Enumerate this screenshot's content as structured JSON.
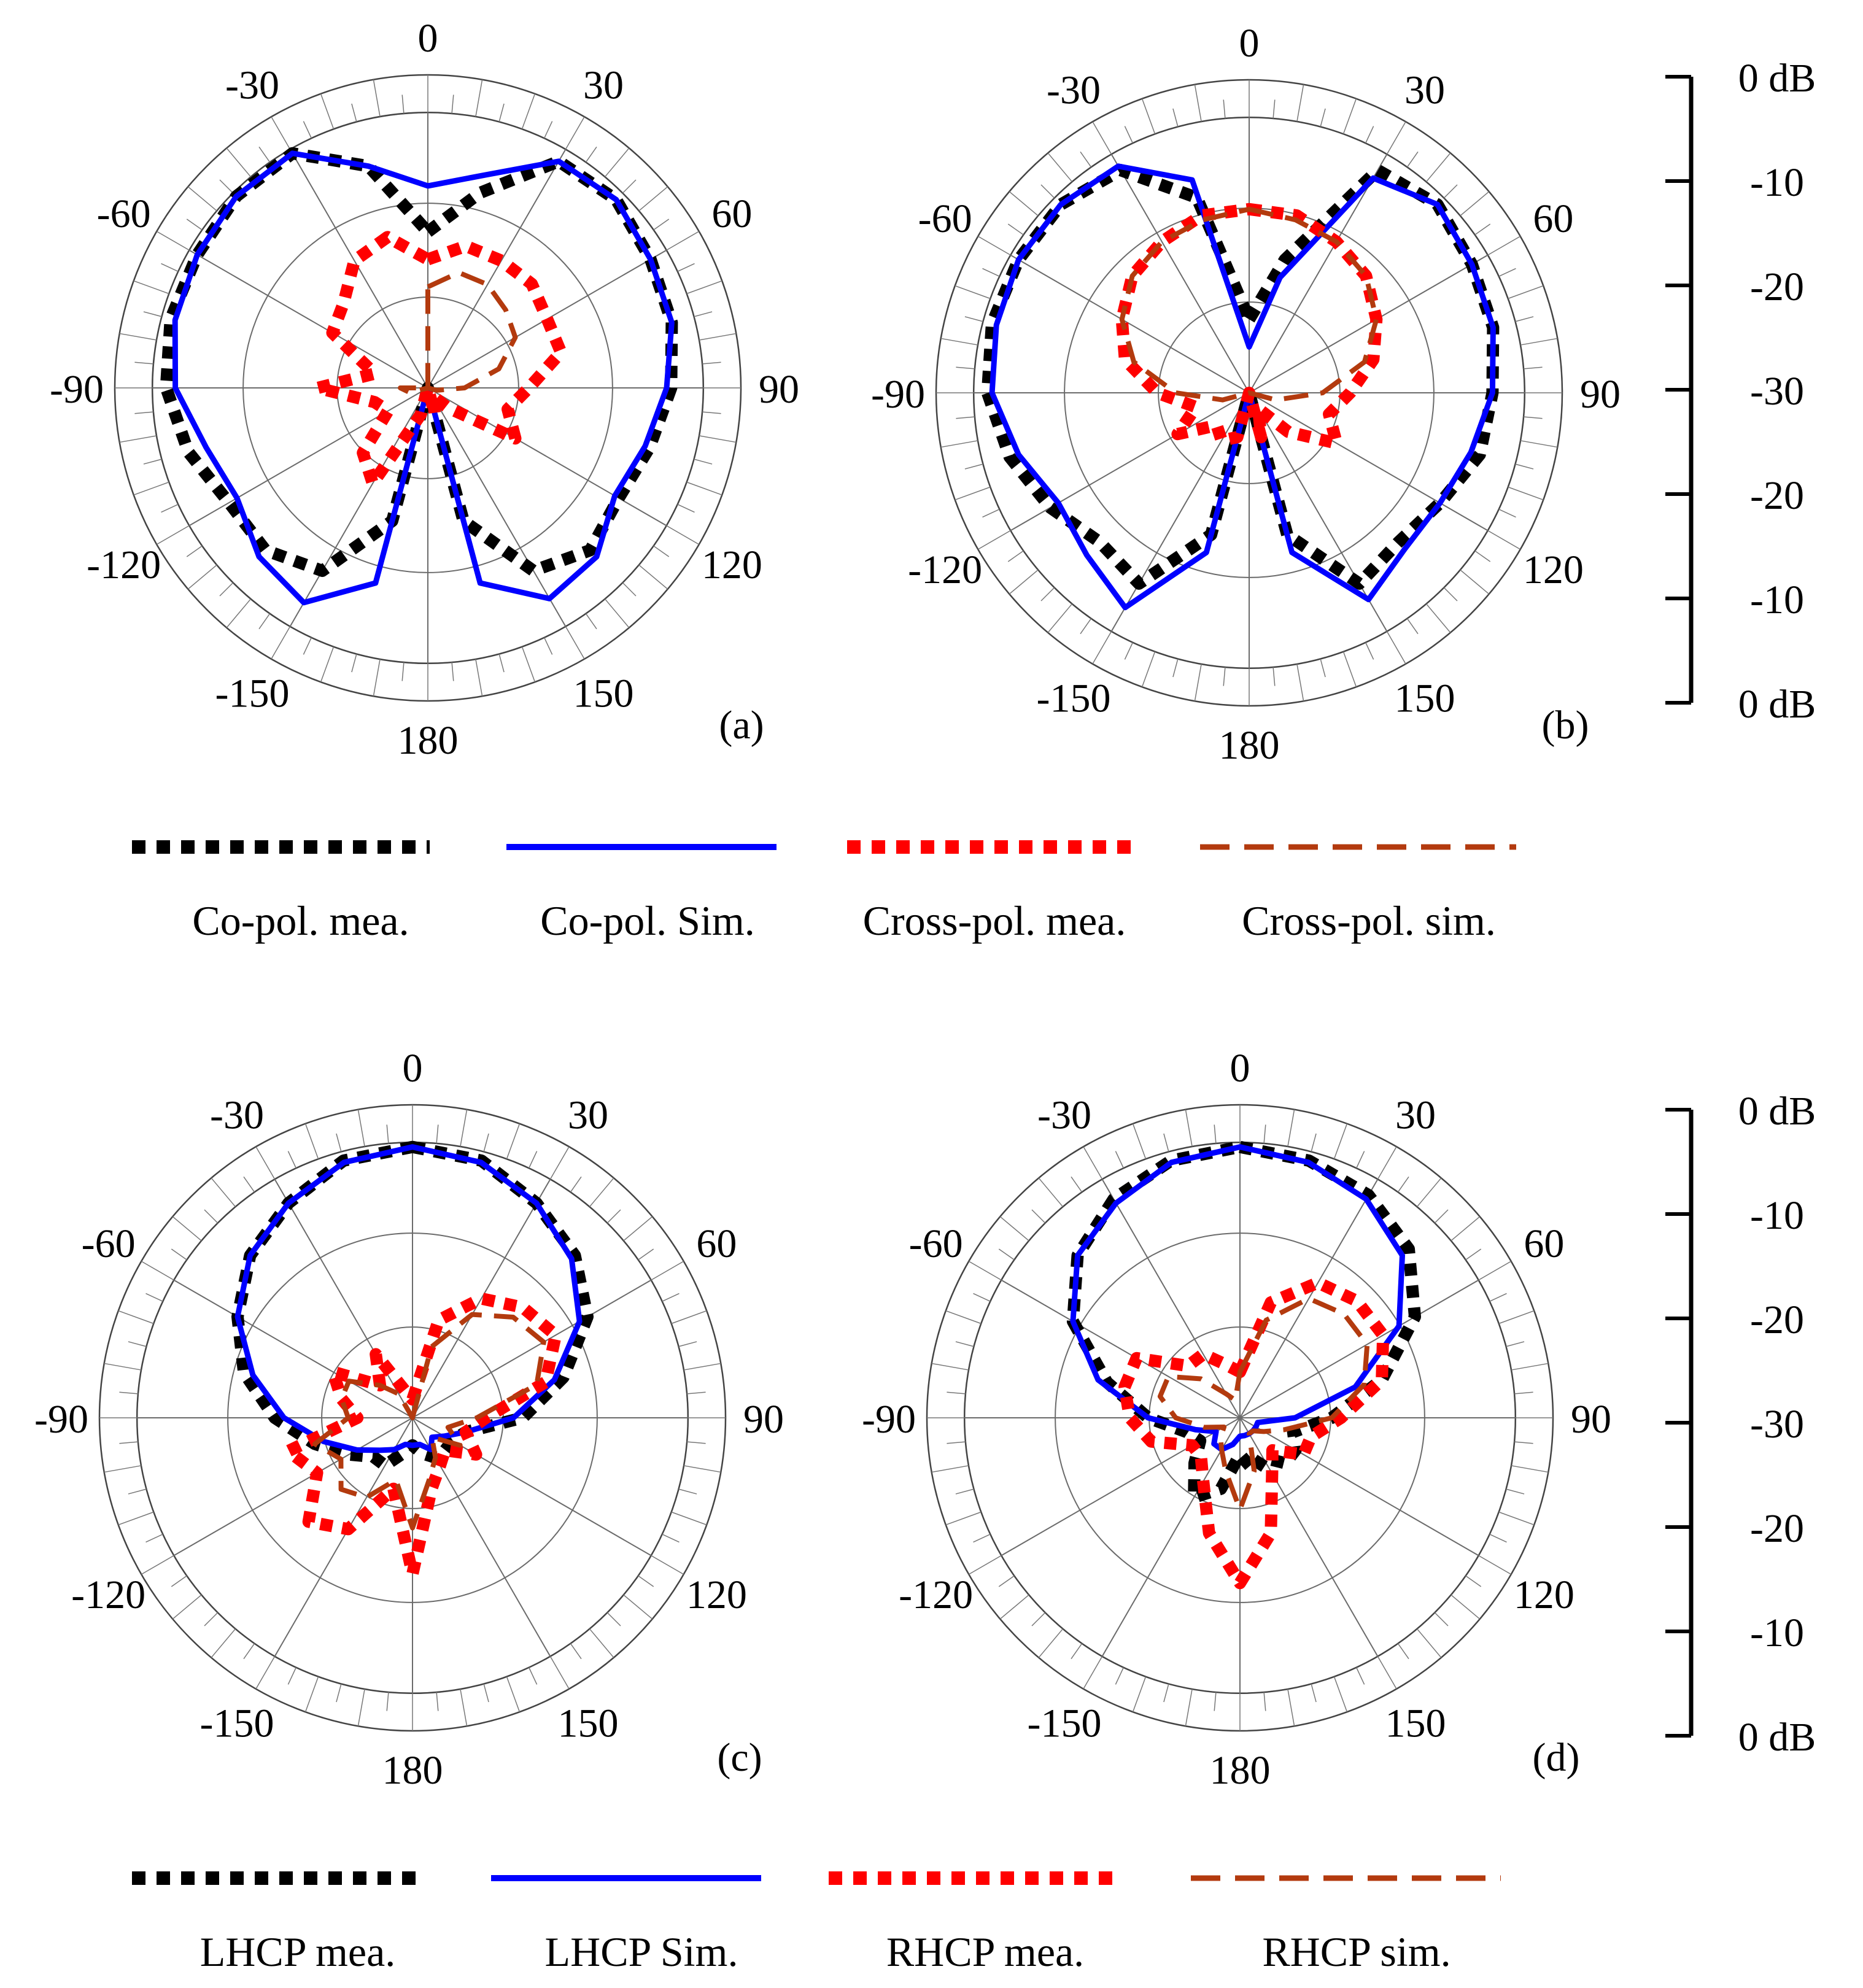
{
  "figure": {
    "angle_ticks": [
      "0",
      "30",
      "60",
      "90",
      "120",
      "150",
      "180",
      "-150",
      "-120",
      "-90",
      "-60",
      "-30"
    ],
    "legend_top": [
      "Co-pol. mea.",
      "Co-pol. Sim.",
      "Cross-pol. mea.",
      "Cross-pol. sim."
    ],
    "legend_bottom": [
      "LHCP mea.",
      "LHCP Sim.",
      "RHCP mea.",
      "RHCP sim."
    ],
    "scale_labels": [
      "0 dB",
      "-10",
      "-20",
      "-30",
      "-20",
      "-10",
      "0 dB"
    ],
    "series_colors": {
      "measured_main": "#000000",
      "simulated_main": "#0000ff",
      "measured_cross": "#ff0000",
      "simulated_cross": "#b33a0e"
    }
  },
  "chart_data": [
    {
      "type": "polar",
      "panel": "(a)",
      "radial_range_db": [
        -30,
        0
      ],
      "angle_unit": "deg",
      "series": [
        {
          "name": "Co-pol. mea.",
          "style": "dotted",
          "color": "#000000",
          "theta": [
            0,
            15,
            30,
            45,
            60,
            75,
            90,
            105,
            120,
            135,
            150,
            165,
            180,
            -165,
            -150,
            -135,
            -120,
            -105,
            -90,
            -75,
            -60,
            -45,
            -30,
            -15
          ],
          "r_db": [
            -13,
            -8,
            -1.5,
            -1,
            -2,
            -2.5,
            -3.5,
            -5,
            -6,
            -5,
            -7,
            -15,
            -30,
            -15,
            -7,
            -5,
            -5,
            -3,
            -1.5,
            -1,
            -1,
            -0.5,
            -0.5,
            -5
          ]
        },
        {
          "name": "Co-pol. Sim.",
          "style": "solid",
          "color": "#0000ff",
          "theta": [
            0,
            15,
            30,
            45,
            60,
            75,
            90,
            105,
            120,
            135,
            150,
            165,
            180,
            -165,
            -150,
            -135,
            -120,
            -105,
            -90,
            -75,
            -60,
            -45,
            -30,
            -15
          ],
          "r_db": [
            -8,
            -6,
            -1.5,
            -1,
            -2,
            -2.5,
            -4,
            -5.5,
            -6.5,
            -4,
            -3.5,
            -8,
            -30,
            -8,
            -3,
            -4,
            -6,
            -5,
            -2.5,
            -1.5,
            -1,
            -0.5,
            -0.5,
            -5
          ]
        },
        {
          "name": "Cross-pol. mea.",
          "style": "dotted",
          "color": "#ff0000",
          "theta": [
            0,
            15,
            30,
            45,
            60,
            75,
            90,
            105,
            120,
            135,
            150,
            165,
            180,
            -165,
            -150,
            -135,
            -120,
            -105,
            -90,
            -75,
            -60,
            -45,
            -30,
            -15
          ],
          "r_db": [
            -16,
            -14,
            -14,
            -14,
            -15,
            -15,
            -19,
            -21,
            -19,
            -27,
            -29,
            -27,
            -30,
            -27,
            -18,
            -20,
            -25,
            -24,
            -18,
            -24,
            -18,
            -17,
            -14,
            -13
          ]
        },
        {
          "name": "Cross-pol. sim.",
          "style": "dashed",
          "color": "#b33a0e",
          "theta": [
            0,
            15,
            30,
            45,
            60,
            75,
            90,
            105,
            120,
            135,
            150,
            165,
            180,
            -165,
            -150,
            -135,
            -120,
            -105,
            -90,
            -75,
            -60,
            -45,
            -30,
            -15
          ],
          "r_db": [
            -19,
            -17,
            -17,
            -18,
            -19,
            -22,
            -26,
            -29,
            -30,
            -30,
            -30,
            -30,
            -30,
            -30,
            -30,
            -30,
            -30,
            -28,
            -27,
            -30,
            -30,
            -30,
            -30,
            -30
          ]
        }
      ]
    },
    {
      "type": "polar",
      "panel": "(b)",
      "radial_range_db": [
        -30,
        0
      ],
      "angle_unit": "deg",
      "series": [
        {
          "name": "Co-pol. mea.",
          "style": "dotted",
          "color": "#000000",
          "theta": [
            0,
            15,
            30,
            45,
            60,
            75,
            90,
            105,
            120,
            135,
            150,
            165,
            180,
            -165,
            -150,
            -135,
            -120,
            -105,
            -90,
            -75,
            -60,
            -45,
            -30,
            -15
          ],
          "r_db": [
            -22,
            -15,
            -2,
            -1,
            -2,
            -2.5,
            -3.5,
            -4,
            -6,
            -7,
            -6,
            -14,
            -30,
            -14,
            -6,
            -7,
            -5,
            -3,
            -1.5,
            -1,
            -1,
            -1,
            -2,
            -8
          ]
        },
        {
          "name": "Co-pol. Sim.",
          "style": "solid",
          "color": "#0000ff",
          "theta": [
            0,
            15,
            30,
            45,
            60,
            75,
            90,
            105,
            120,
            135,
            150,
            165,
            180,
            -165,
            -150,
            -135,
            -120,
            -105,
            -90,
            -75,
            -60,
            -45,
            -30,
            -15
          ],
          "r_db": [
            -25,
            -17,
            -3,
            -1,
            -2,
            -2.5,
            -3.5,
            -5,
            -6,
            -6,
            -4,
            -12,
            -30,
            -12,
            -3,
            -5,
            -6,
            -4,
            -2,
            -1.5,
            -1,
            -1,
            -1.5,
            -6
          ]
        },
        {
          "name": "Cross-pol. mea.",
          "style": "dotted",
          "color": "#ff0000",
          "theta": [
            0,
            15,
            30,
            45,
            60,
            75,
            90,
            105,
            120,
            135,
            150,
            165,
            180,
            -165,
            -150,
            -135,
            -120,
            -105,
            -90,
            -75,
            -60,
            -45,
            -30,
            -15
          ],
          "r_db": [
            -10,
            -10,
            -11,
            -12,
            -14,
            -16,
            -19,
            -21,
            -19,
            -24,
            -28,
            -25,
            -30,
            -25,
            -24,
            -25,
            -21,
            -24,
            -20,
            -16,
            -14,
            -12,
            -11,
            -10
          ]
        },
        {
          "name": "Cross-pol. sim.",
          "style": "dashed",
          "color": "#b33a0e",
          "theta": [
            0,
            15,
            30,
            45,
            60,
            75,
            90,
            105,
            120,
            135,
            150,
            165,
            180,
            -165,
            -150,
            -135,
            -120,
            -105,
            -90,
            -75,
            -60,
            -45,
            -30,
            -15
          ],
          "r_db": [
            -10,
            -10.5,
            -11,
            -12,
            -14,
            -17,
            -22,
            -27,
            -30,
            -30,
            -30,
            -30,
            -30,
            -30,
            -30,
            -30,
            -30,
            -27,
            -22,
            -17,
            -14,
            -12,
            -11,
            -10.5
          ]
        }
      ]
    },
    {
      "type": "polar",
      "panel": "(c)",
      "radial_range_db": [
        -30,
        0
      ],
      "angle_unit": "deg",
      "series": [
        {
          "name": "LHCP mea.",
          "style": "dotted",
          "color": "#000000",
          "theta": [
            0,
            15,
            30,
            45,
            60,
            75,
            90,
            105,
            120,
            135,
            150,
            165,
            180,
            -165,
            -150,
            -135,
            -120,
            -105,
            -90,
            -75,
            -60,
            -45,
            -30,
            -15
          ],
          "r_db": [
            -0.5,
            -1,
            -3,
            -5,
            -8,
            -13,
            -18,
            -24,
            -25,
            -25,
            -25,
            -26,
            -27,
            -26,
            -24,
            -24,
            -22,
            -19,
            -15,
            -11,
            -8,
            -5,
            -3,
            -1
          ]
        },
        {
          "name": "LHCP Sim.",
          "style": "solid",
          "color": "#0000ff",
          "theta": [
            0,
            15,
            30,
            45,
            60,
            75,
            90,
            105,
            120,
            135,
            150,
            165,
            180,
            -165,
            -150,
            -135,
            -120,
            -105,
            -90,
            -75,
            -60,
            -45,
            -30,
            -15
          ],
          "r_db": [
            -0.5,
            -1.2,
            -3,
            -5.5,
            -9,
            -14,
            -19,
            -24,
            -26,
            -27,
            -26,
            -27,
            -27,
            -27,
            -26,
            -25,
            -23,
            -20,
            -16,
            -12,
            -8,
            -5,
            -3,
            -1.2
          ]
        },
        {
          "name": "RHCP mea.",
          "style": "dotted",
          "color": "#ff0000",
          "theta": [
            0,
            15,
            30,
            45,
            60,
            75,
            90,
            105,
            120,
            135,
            150,
            165,
            180,
            -165,
            -150,
            -135,
            -120,
            -105,
            -90,
            -75,
            -60,
            -45,
            -30,
            -15
          ],
          "r_db": [
            -28,
            -19,
            -15,
            -13,
            -12,
            -15,
            -22,
            -24,
            -22,
            -25,
            -24,
            -22,
            -13,
            -22,
            -16,
            -14,
            -18,
            -16,
            -24,
            -22,
            -20,
            -25,
            -22,
            -27
          ]
        },
        {
          "name": "RHCP sim.",
          "style": "dashed",
          "color": "#b33a0e",
          "theta": [
            0,
            15,
            30,
            45,
            60,
            75,
            90,
            105,
            120,
            135,
            150,
            165,
            180,
            -165,
            -150,
            -135,
            -120,
            -105,
            -90,
            -75,
            -60,
            -45,
            -30,
            -15
          ],
          "r_db": [
            -30,
            -22,
            -17,
            -14.5,
            -13.5,
            -16,
            -23,
            -26,
            -24,
            -27,
            -25,
            -23,
            -18,
            -23,
            -20,
            -19,
            -21,
            -19,
            -23,
            -22,
            -22,
            -25,
            -27,
            -30
          ]
        }
      ]
    },
    {
      "type": "polar",
      "panel": "(d)",
      "radial_range_db": [
        -30,
        0
      ],
      "angle_unit": "deg",
      "series": [
        {
          "name": "LHCP mea.",
          "style": "dotted",
          "color": "#000000",
          "theta": [
            0,
            15,
            30,
            45,
            60,
            75,
            90,
            105,
            120,
            135,
            150,
            165,
            180,
            -165,
            -150,
            -135,
            -120,
            -105,
            -90,
            -75,
            -60,
            -45,
            -30,
            -15
          ],
          "r_db": [
            -0.5,
            -1,
            -2,
            -4,
            -8,
            -14,
            -20,
            -24,
            -23,
            -23,
            -25,
            -24,
            -26,
            -22,
            -20,
            -23,
            -25,
            -24,
            -20,
            -15,
            -9,
            -5,
            -2.5,
            -1
          ]
        },
        {
          "name": "LHCP Sim.",
          "style": "solid",
          "color": "#0000ff",
          "theta": [
            0,
            15,
            30,
            45,
            60,
            75,
            90,
            105,
            120,
            135,
            150,
            165,
            180,
            -165,
            -150,
            -135,
            -120,
            -105,
            -90,
            -75,
            -60,
            -45,
            -30,
            -15
          ],
          "r_db": [
            -0.5,
            -1.2,
            -2.5,
            -5,
            -10,
            -17,
            -24,
            -28,
            -28,
            -28,
            -28,
            -28,
            -28,
            -27,
            -26,
            -26,
            -27,
            -25,
            -20,
            -14,
            -9,
            -5,
            -3,
            -1.2
          ]
        },
        {
          "name": "RHCP mea.",
          "style": "dotted",
          "color": "#ff0000",
          "theta": [
            0,
            15,
            30,
            45,
            60,
            75,
            90,
            105,
            120,
            135,
            150,
            165,
            180,
            -165,
            -150,
            -135,
            -120,
            -105,
            -90,
            -75,
            -60,
            -45,
            -30,
            -15
          ],
          "r_db": [
            -25,
            -17,
            -13,
            -12,
            -12,
            -14,
            -19,
            -22,
            -22,
            -25,
            -23,
            -17,
            -12,
            -17,
            -22,
            -24,
            -24,
            -20,
            -18,
            -17,
            -17,
            -22,
            -22,
            -24
          ]
        },
        {
          "name": "RHCP sim.",
          "style": "dashed",
          "color": "#b33a0e",
          "theta": [
            0,
            15,
            30,
            45,
            60,
            75,
            90,
            105,
            120,
            135,
            150,
            165,
            180,
            -165,
            -150,
            -135,
            -120,
            -105,
            -90,
            -75,
            -60,
            -45,
            -30,
            -15
          ],
          "r_db": [
            -25,
            -19,
            -15,
            -14,
            -14,
            -16,
            -20,
            -25,
            -27,
            -28,
            -28,
            -24,
            -20,
            -24,
            -26,
            -27,
            -28,
            -26,
            -23,
            -21,
            -21,
            -24,
            -27,
            -28
          ]
        }
      ]
    }
  ]
}
